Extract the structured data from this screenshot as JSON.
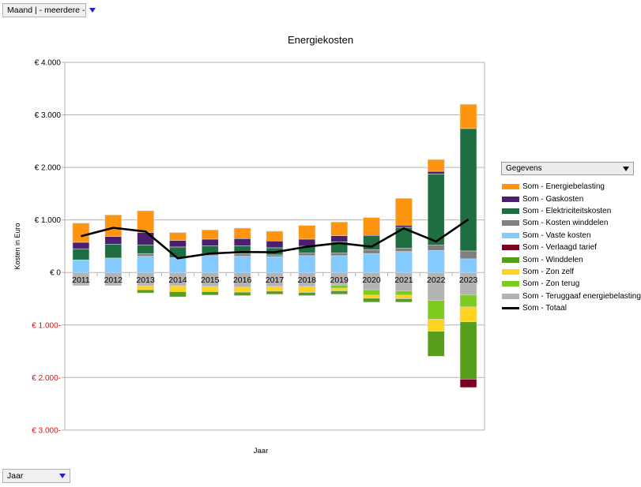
{
  "controls": {
    "month_filter": {
      "label": "Maand | - meerdere -"
    },
    "year_filter": {
      "label": "Jaar"
    },
    "legend_selector": {
      "label": "Gegevens"
    }
  },
  "chart_data": {
    "type": "bar",
    "subtype": "stacked-bars-with-total-line",
    "title": "Energiekosten",
    "xlabel": "Jaar",
    "ylabel": "Kosten in Euro",
    "legend_position": "right",
    "grid": true,
    "ylim": [
      -3000,
      4000
    ],
    "axis_color": "#B3B3B3",
    "tick_label_color_positive": "#000000",
    "tick_label_color_negative": "#FF0000",
    "y_ticks": [
      {
        "value": 4000,
        "label": "€ 4.000"
      },
      {
        "value": 3000,
        "label": "€ 3.000"
      },
      {
        "value": 2000,
        "label": "€ 2.000"
      },
      {
        "value": 1000,
        "label": "€ 1.000"
      },
      {
        "value": 0,
        "label": "€ 0"
      },
      {
        "value": -1000,
        "label": "€ 1.000-"
      },
      {
        "value": -2000,
        "label": "€ 2.000-"
      },
      {
        "value": -3000,
        "label": "€ 3.000-"
      }
    ],
    "categories": [
      "2011",
      "2012",
      "2013",
      "2014",
      "2015",
      "2016",
      "2017",
      "2018",
      "2019",
      "2020",
      "2021",
      "2022",
      "2023"
    ],
    "series": [
      {
        "name": "Som - Energiebelasting",
        "color": "#FF950E",
        "values": [
          365,
          410,
          415,
          150,
          175,
          200,
          185,
          260,
          260,
          325,
          510,
          225,
          460
        ]
      },
      {
        "name": "Som - Gaskosten",
        "color": "#4B1F6F",
        "values": [
          125,
          150,
          235,
          125,
          125,
          135,
          130,
          135,
          115,
          20,
          40,
          50,
          0
        ]
      },
      {
        "name": "Som - Elektriciteitskosten",
        "color": "#1E6E41",
        "values": [
          210,
          260,
          165,
          200,
          150,
          150,
          135,
          130,
          215,
          265,
          400,
          1355,
          2330
        ]
      },
      {
        "name": "Som - Kosten winddelen",
        "color": "#7F7F7F",
        "values": [
          0,
          0,
          50,
          0,
          40,
          50,
          35,
          50,
          50,
          75,
          60,
          100,
          150
        ]
      },
      {
        "name": "Som - Vaste kosten",
        "color": "#83CAFF",
        "values": [
          240,
          275,
          310,
          285,
          320,
          310,
          300,
          320,
          320,
          360,
          400,
          420,
          260
        ]
      },
      {
        "name": "Som - Verlaagd tarief",
        "color": "#7E0021",
        "values": [
          0,
          0,
          0,
          0,
          0,
          0,
          0,
          0,
          0,
          0,
          0,
          0,
          -160
        ]
      },
      {
        "name": "Som - Winddelen",
        "color": "#579D1C",
        "values": [
          0,
          0,
          -60,
          -100,
          -65,
          -65,
          -60,
          -60,
          -65,
          -75,
          -65,
          -475,
          -1090
        ]
      },
      {
        "name": "Som - Zon zelf",
        "color": "#FFD320",
        "values": [
          0,
          0,
          -75,
          -110,
          -100,
          -95,
          -90,
          -115,
          -50,
          -60,
          -70,
          -230,
          -285
        ]
      },
      {
        "name": "Som - Zon terug",
        "color": "#7ECB1F",
        "values": [
          0,
          0,
          0,
          0,
          0,
          0,
          0,
          0,
          -60,
          -100,
          -80,
          -360,
          -225
        ]
      },
      {
        "name": "Som - Teruggaaf energiebelasting",
        "color": "#B3B3B3",
        "values": [
          -250,
          -250,
          -255,
          -255,
          -265,
          -280,
          -265,
          -265,
          -240,
          -330,
          -350,
          -530,
          -430
        ]
      }
    ],
    "line_series": {
      "name": "Som - Totaal",
      "color": "#000000",
      "values": [
        690,
        850,
        780,
        270,
        360,
        390,
        385,
        490,
        560,
        490,
        840,
        590,
        1010
      ]
    }
  }
}
